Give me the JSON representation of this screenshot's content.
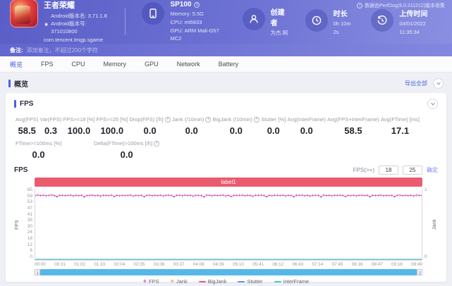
{
  "header": {
    "app": {
      "name": "王者荣耀",
      "version_name": "Android版本名: 3.71.1.8",
      "version_code": "Android版本号: 371010800",
      "package": "com.tencent.tmgp.sgame"
    },
    "device": {
      "model": "SP100",
      "memory": "Memory: 5.5G",
      "cpu": "CPU: mt6833",
      "gpu": "GPU: ARM Mali-G57 MC2"
    },
    "creator": {
      "label": "创建者",
      "value": "为杰 网"
    },
    "duration": {
      "label": "时长",
      "value": "0h 10m 2s"
    },
    "upload_time": {
      "label": "上传时间",
      "value": "04/01/2022 11:35:34"
    },
    "collector_note": "数据由PerfDog(6.0.211212)版本收集"
  },
  "note_bar": {
    "label": "备注:",
    "placeholder": "添加备注，不超过200个字符"
  },
  "tabs": [
    {
      "label": "概览",
      "active": true
    },
    {
      "label": "FPS",
      "active": false
    },
    {
      "label": "CPU",
      "active": false
    },
    {
      "label": "Memory",
      "active": false
    },
    {
      "label": "GPU",
      "active": false
    },
    {
      "label": "Network",
      "active": false
    },
    {
      "label": "Battery",
      "active": false
    }
  ],
  "overview_section": {
    "title": "概览",
    "export_all": "导出全部"
  },
  "fps_panel": {
    "title": "FPS",
    "stats_row1": [
      {
        "label": "Avg(FPS)",
        "value": "58.5",
        "info": false
      },
      {
        "label": "Var(FPS)",
        "value": "0.3",
        "info": false
      },
      {
        "label": "FPS>=18 [%]",
        "value": "100.0",
        "info": false
      },
      {
        "label": "FPS>=25 [%]",
        "value": "100.0",
        "info": false
      },
      {
        "label": "Drop(FPS) [/h]",
        "value": "0.0",
        "info": true
      },
      {
        "label": "Jank (/10min)",
        "value": "0.0",
        "info": true
      },
      {
        "label": "BigJank (/10min)",
        "value": "0.0",
        "info": true
      },
      {
        "label": "Stutter [%]",
        "value": "0.0",
        "info": false
      },
      {
        "label": "Avg(InterFrame)",
        "value": "0.0",
        "info": false
      },
      {
        "label": "Avg(FPS+InterFrame)",
        "value": "58.5",
        "info": false
      },
      {
        "label": "Avg(FTime) [ms]",
        "value": "17.1",
        "info": false
      }
    ],
    "stats_row2": [
      {
        "label": "FTime>=100ms [%]",
        "value": "0.0",
        "info": false
      },
      {
        "label": "Delta(FTime)>100ms [/h]",
        "value": "0.0",
        "info": true
      }
    ],
    "chart_header": {
      "title": "FPS",
      "threshold_label": "FPS(>=)",
      "threshold1": "18",
      "threshold2": "25",
      "apply_label": "确定"
    }
  },
  "chart_data": {
    "type": "line",
    "banner_label": "label1",
    "banner_color": "#ea5b6e",
    "ylabel_left": "FPS",
    "ylabel_right": "Jank",
    "ylim_left": [
      0,
      65
    ],
    "ylim_right": [
      0,
      1
    ],
    "y_ticks_left": [
      65,
      59,
      53,
      47,
      41,
      35,
      30,
      24,
      18,
      12,
      6,
      0
    ],
    "y_ticks_right": [
      1,
      0
    ],
    "x_ticks": [
      "00:00",
      "00:31",
      "01:02",
      "01:33",
      "02:04",
      "02:35",
      "03:06",
      "03:37",
      "04:08",
      "04:39",
      "05:10",
      "05:41",
      "06:12",
      "06:43",
      "07:14",
      "07:45",
      "08:16",
      "08:47",
      "09:18",
      "09:49"
    ],
    "legend_position": "bottom",
    "grid": false,
    "series": [
      {
        "name": "FPS",
        "axis": "left",
        "color": "#cc4ec4",
        "marker": "plus",
        "values": [
          59,
          59.2,
          58.8,
          59.1,
          58.6,
          59,
          59.3,
          58.9,
          57.8,
          59,
          59.1,
          58.7,
          59,
          59.2,
          58.5,
          59,
          58.9,
          59.1,
          57.6,
          58.8,
          59,
          59.2,
          58.7,
          59,
          58.4,
          59.1,
          59,
          58.8,
          59.2,
          57.9,
          59,
          58.6,
          59.1,
          58.9,
          59,
          59.2,
          58.3,
          59,
          58.8,
          59.1,
          57.7,
          59,
          59.2,
          58.6,
          59,
          58.9,
          59.1,
          58.5,
          59,
          59.2,
          58.8,
          57.8,
          59,
          59.1,
          58.7,
          59.2,
          58.9,
          59,
          58.4,
          59.1,
          59,
          58.8,
          57.6,
          59.2,
          59,
          58.6,
          59.1,
          58.9,
          59,
          59.2,
          58.5,
          59,
          57.9,
          58.8,
          59.1,
          59,
          59.2,
          58.7,
          59,
          58.9,
          58.3,
          59.1,
          59,
          59.2,
          58.8,
          57.7,
          59,
          58.6,
          59.1,
          59,
          58.9,
          59.2,
          58.5,
          59,
          58.8,
          57.8,
          59.1,
          59,
          59.2,
          58.7,
          59,
          58.4,
          58.9,
          59.1,
          59,
          57.6,
          59.2,
          58.8,
          59,
          58.6,
          59.1,
          59,
          59.2,
          58.9,
          57.9,
          59,
          58.7,
          59.1,
          58.5,
          59,
          59.2,
          58.8,
          59,
          57.7,
          59.1,
          58.9,
          59,
          59.2,
          58.6,
          59,
          58.8,
          59.1,
          57.8,
          59,
          59.2,
          58.7,
          59,
          58.9,
          59.1,
          58.5,
          59.2,
          59,
          58.8
        ]
      },
      {
        "name": "Jank",
        "axis": "right",
        "color": "#f59a3e",
        "marker": "plus",
        "constant": 0
      },
      {
        "name": "BigJank",
        "axis": "right",
        "color": "#ea5b6e",
        "marker": "line",
        "constant": 0
      },
      {
        "name": "Stutter",
        "axis": "right",
        "color": "#5b8ff9",
        "marker": "line",
        "constant": 0
      },
      {
        "name": "InterFrame",
        "axis": "left",
        "color": "#36cfc9",
        "marker": "line",
        "constant": 0
      }
    ],
    "legend": [
      {
        "name": "FPS",
        "color": "#cc4ec4",
        "marker": "plus"
      },
      {
        "name": "Jank",
        "color": "#f59a3e",
        "marker": "plus"
      },
      {
        "name": "BigJank",
        "color": "#ea5b6e",
        "marker": "line"
      },
      {
        "name": "Stutter",
        "color": "#5b8ff9",
        "marker": "line"
      },
      {
        "name": "InterFrame",
        "color": "#36cfc9",
        "marker": "line"
      }
    ]
  }
}
